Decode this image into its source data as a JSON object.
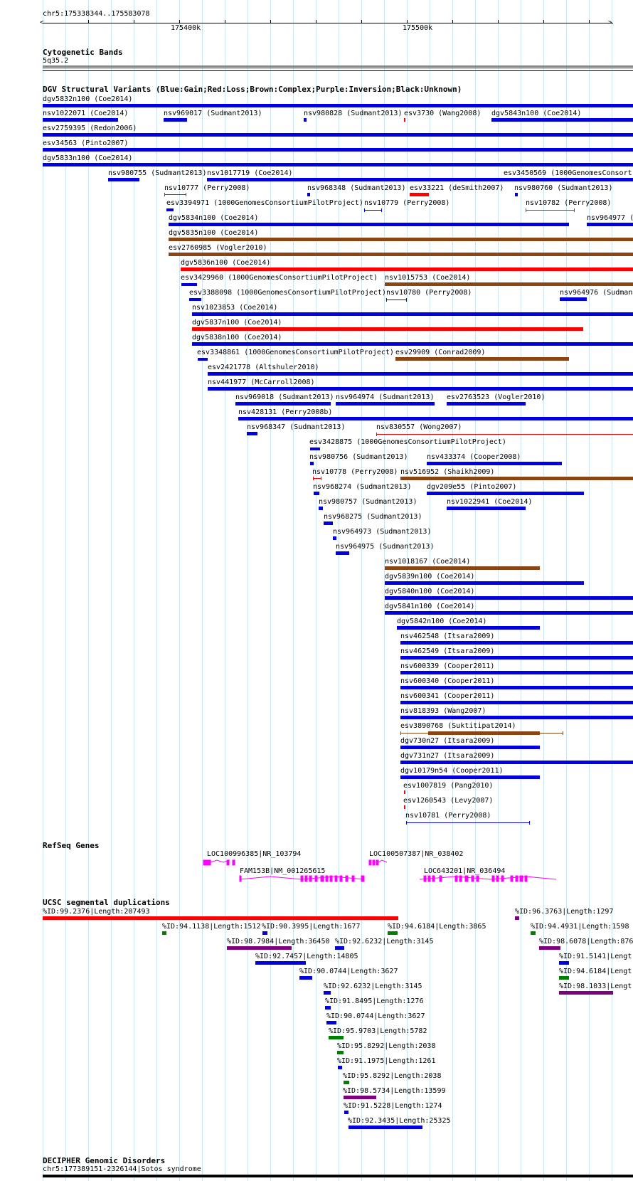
{
  "ruler": {
    "coord": "chr5:175338344..175583078",
    "ticks": [
      "175400k",
      "175500k"
    ]
  },
  "cytoband": {
    "title": "Cytogenetic Bands",
    "band": "5q35.2"
  },
  "dgv": {
    "title": "DGV Structural Variants (Blue:Gain;Red:Loss;Brown:Complex;Purple:Inversion;Black:Unknown)",
    "colors": {
      "gain": "#0000e0",
      "loss": "#ff0000",
      "complex": "#8b4513",
      "inversion": "#800080",
      "unknown": "#000000"
    },
    "items": [
      {
        "label": "dgv5832n100 (Coe2014)",
        "type": "gain"
      },
      {
        "label": "nsv1022071 (Coe2014)",
        "type": "gain"
      },
      {
        "label": "nsv969017 (Sudmant2013)",
        "type": "gain"
      },
      {
        "label": "nsv980828 (Sudmant2013)",
        "type": "gain"
      },
      {
        "label": "esv3730 (Wang2008)",
        "type": "loss"
      },
      {
        "label": "dgv5843n100 (Coe2014)",
        "type": "gain"
      },
      {
        "label": "esv2759395 (Redon2006)",
        "type": "gain"
      },
      {
        "label": "esv34563 (Pinto2007)",
        "type": "gain"
      },
      {
        "label": "dgv5833n100 (Coe2014)",
        "type": "gain"
      },
      {
        "label": "nsv980755 (Sudmant2013)",
        "type": "gain"
      },
      {
        "label": "nsv1017719 (Coe2014)",
        "type": "gain"
      },
      {
        "label": "esv3450569 (1000GenomesConsort",
        "type": "gain"
      },
      {
        "label": "nsv10777 (Perry2008)",
        "type": "loss"
      },
      {
        "label": "nsv968348 (Sudmant2013)",
        "type": "gain"
      },
      {
        "label": "esv33221 (deSmith2007)",
        "type": "loss"
      },
      {
        "label": "nsv980760 (Sudmant2013)",
        "type": "gain"
      },
      {
        "label": "esv3394971 (1000GenomesConsortiumPilotProject)",
        "type": "gain"
      },
      {
        "label": "nsv10779 (Perry2008)",
        "type": "gain"
      },
      {
        "label": "nsv10782 (Perry2008)",
        "type": "complex"
      },
      {
        "label": "dgv5834n100 (Coe2014)",
        "type": "gain"
      },
      {
        "label": "nsv964977 (",
        "type": "gain"
      },
      {
        "label": "dgv5835n100 (Coe2014)",
        "type": "complex"
      },
      {
        "label": "esv2760985 (Vogler2010)",
        "type": "complex"
      },
      {
        "label": "dgv5836n100 (Coe2014)",
        "type": "loss"
      },
      {
        "label": "esv3429960 (1000GenomesConsortiumPilotProject)",
        "type": "gain"
      },
      {
        "label": "nsv1015753 (Coe2014)",
        "type": "complex"
      },
      {
        "label": "esv3388098 (1000GenomesConsortiumPilotProject)",
        "type": "gain"
      },
      {
        "label": "nsv10780 (Perry2008)",
        "type": "gain"
      },
      {
        "label": "nsv964976 (Sudman",
        "type": "gain"
      },
      {
        "label": "nsv1023853 (Coe2014)",
        "type": "gain"
      },
      {
        "label": "dgv5837n100 (Coe2014)",
        "type": "loss"
      },
      {
        "label": "dgv5838n100 (Coe2014)",
        "type": "gain"
      },
      {
        "label": "esv3348861 (1000GenomesConsortiumPilotProject)",
        "type": "gain"
      },
      {
        "label": "esv29909 (Conrad2009)",
        "type": "complex"
      },
      {
        "label": "esv2421778 (Altshuler2010)",
        "type": "gain"
      },
      {
        "label": "nsv441977 (McCarroll2008)",
        "type": "gain"
      },
      {
        "label": "nsv969018 (Sudmant2013)",
        "type": "gain"
      },
      {
        "label": "nsv964974 (Sudmant2013)",
        "type": "gain"
      },
      {
        "label": "esv2763523 (Vogler2010)",
        "type": "gain"
      },
      {
        "label": "nsv428131 (Perry2008b)",
        "type": "gain"
      },
      {
        "label": "nsv968347 (Sudmant2013)",
        "type": "gain"
      },
      {
        "label": "nsv830557 (Wong2007)",
        "type": "loss"
      },
      {
        "label": "esv3428875 (1000GenomesConsortiumPilotProject)",
        "type": "gain"
      },
      {
        "label": "nsv980756 (Sudmant2013)",
        "type": "gain"
      },
      {
        "label": "nsv433374 (Cooper2008)",
        "type": "gain"
      },
      {
        "label": "nsv10778 (Perry2008)",
        "type": "loss"
      },
      {
        "label": "nsv516952 (Shaikh2009)",
        "type": "complex"
      },
      {
        "label": "nsv968274 (Sudmant2013)",
        "type": "gain"
      },
      {
        "label": "dgv209e55 (Pinto2007)",
        "type": "gain"
      },
      {
        "label": "nsv980757 (Sudmant2013)",
        "type": "gain"
      },
      {
        "label": "nsv1022941 (Coe2014)",
        "type": "gain"
      },
      {
        "label": "nsv968275 (Sudmant2013)",
        "type": "gain"
      },
      {
        "label": "nsv964973 (Sudmant2013)",
        "type": "gain"
      },
      {
        "label": "nsv964975 (Sudmant2013)",
        "type": "gain"
      },
      {
        "label": "nsv1018167 (Coe2014)",
        "type": "complex"
      },
      {
        "label": "dgv5839n100 (Coe2014)",
        "type": "gain"
      },
      {
        "label": "dgv5840n100 (Coe2014)",
        "type": "gain"
      },
      {
        "label": "dgv5841n100 (Coe2014)",
        "type": "gain"
      },
      {
        "label": "dgv5842n100 (Coe2014)",
        "type": "gain"
      },
      {
        "label": "nsv462548 (Itsara2009)",
        "type": "gain"
      },
      {
        "label": "nsv462549 (Itsara2009)",
        "type": "gain"
      },
      {
        "label": "nsv600339 (Cooper2011)",
        "type": "gain"
      },
      {
        "label": "nsv600340 (Cooper2011)",
        "type": "gain"
      },
      {
        "label": "nsv600341 (Cooper2011)",
        "type": "gain"
      },
      {
        "label": "nsv818393 (Wang2007)",
        "type": "gain"
      },
      {
        "label": "esv3890768 (Suktitipat2014)",
        "type": "complex"
      },
      {
        "label": "dgv730n27 (Itsara2009)",
        "type": "gain"
      },
      {
        "label": "dgv731n27 (Itsara2009)",
        "type": "gain"
      },
      {
        "label": "dgv10179n54 (Cooper2011)",
        "type": "gain"
      },
      {
        "label": "esv1007819 (Pang2010)",
        "type": "loss"
      },
      {
        "label": "esv1260543 (Levy2007)",
        "type": "loss"
      },
      {
        "label": "nsv10781 (Perry2008)",
        "type": "gain"
      }
    ]
  },
  "refseq": {
    "title": "RefSeq Genes",
    "color": "#ff00ff",
    "genes": [
      {
        "label": "LOC100996385|NR_103794"
      },
      {
        "label": "LOC100507387|NR_038402"
      },
      {
        "label": "FAM153B|NM_001265615"
      },
      {
        "label": "LOC643201|NR_036494"
      }
    ]
  },
  "segdup": {
    "title": "UCSC segmental duplications",
    "colors": {
      "red": "#ff0000",
      "green": "#008000",
      "purple": "#800080",
      "blue": "#0000e0"
    },
    "items": [
      {
        "label": "%ID:99.2376|Length:207493",
        "color": "red"
      },
      {
        "label": "%ID:96.3763|Length:1297",
        "color": "purple"
      },
      {
        "label": "%ID:94.1138|Length:1512",
        "color": "green"
      },
      {
        "label": "%ID:90.3995|Length:1677",
        "color": "blue"
      },
      {
        "label": "%ID:94.6184|Length:3865",
        "color": "green"
      },
      {
        "label": "%ID:94.4931|Length:1598",
        "color": "green"
      },
      {
        "label": "%ID:98.7984|Length:36450",
        "color": "purple"
      },
      {
        "label": "%ID:92.6232|Length:3145",
        "color": "blue"
      },
      {
        "label": "%ID:98.6078|Length:876",
        "color": "purple"
      },
      {
        "label": "%ID:92.7457|Length:14805",
        "color": "blue"
      },
      {
        "label": "%ID:91.5141|Lengt",
        "color": "blue"
      },
      {
        "label": "%ID:90.0744|Length:3627",
        "color": "blue"
      },
      {
        "label": "%ID:94.6184|Lengt",
        "color": "green"
      },
      {
        "label": "%ID:92.6232|Length:3145",
        "color": "blue"
      },
      {
        "label": "%ID:98.1033|Lengt",
        "color": "purple"
      },
      {
        "label": "%ID:91.8495|Length:1276",
        "color": "blue"
      },
      {
        "label": "%ID:90.0744|Length:3627",
        "color": "blue"
      },
      {
        "label": "%ID:95.9703|Length:5782",
        "color": "green"
      },
      {
        "label": "%ID:95.8292|Length:2038",
        "color": "green"
      },
      {
        "label": "%ID:91.1975|Length:1261",
        "color": "blue"
      },
      {
        "label": "%ID:95.8292|Length:2038",
        "color": "green"
      },
      {
        "label": "%ID:98.5734|Length:13599",
        "color": "purple"
      },
      {
        "label": "%ID:91.5228|Length:1274",
        "color": "blue"
      },
      {
        "label": "%ID:92.3435|Length:25325",
        "color": "blue"
      }
    ]
  },
  "decipher": {
    "title": "DECIPHER Genomic Disorders",
    "items": [
      {
        "label": "chr5:177389151-2326144|Sotos syndrome"
      }
    ]
  }
}
